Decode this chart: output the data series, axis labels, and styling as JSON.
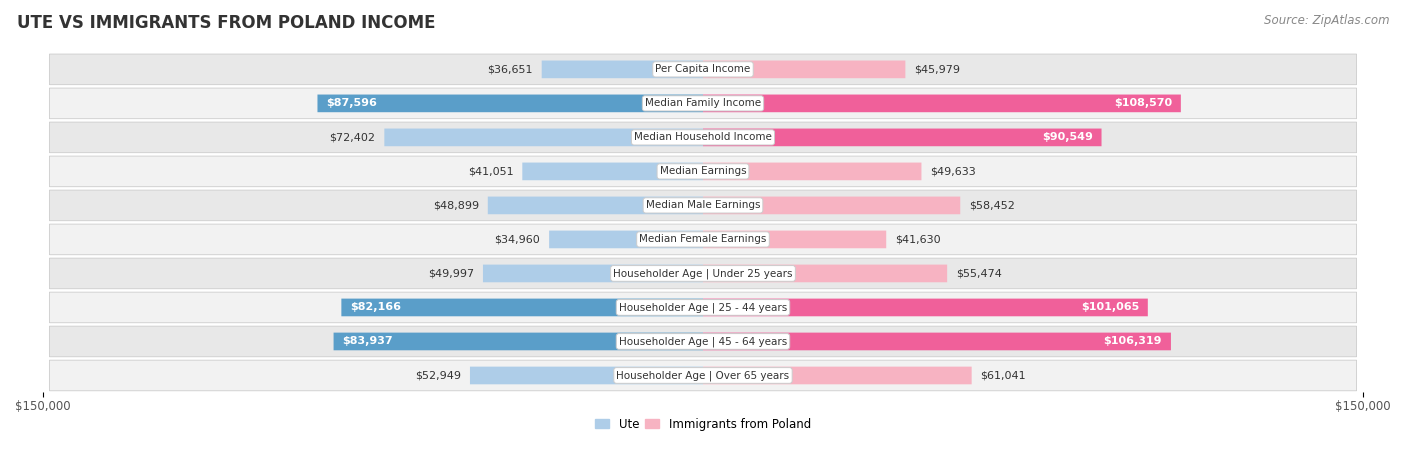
{
  "title": "Ute vs Immigrants from Poland Income",
  "source": "Source: ZipAtlas.com",
  "categories": [
    "Per Capita Income",
    "Median Family Income",
    "Median Household Income",
    "Median Earnings",
    "Median Male Earnings",
    "Median Female Earnings",
    "Householder Age | Under 25 years",
    "Householder Age | 25 - 44 years",
    "Householder Age | 45 - 64 years",
    "Householder Age | Over 65 years"
  ],
  "ute_values": [
    36651,
    87596,
    72402,
    41051,
    48899,
    34960,
    49997,
    82166,
    83937,
    52949
  ],
  "poland_values": [
    45979,
    108570,
    90549,
    49633,
    58452,
    41630,
    55474,
    101065,
    106319,
    61041
  ],
  "ute_color_light": "#aecde8",
  "ute_color_dark": "#5a9ec9",
  "poland_color_light": "#f7b3c2",
  "poland_color_dark": "#f0609a",
  "ute_label": "Ute",
  "poland_label": "Immigrants from Poland",
  "max_value": 150000,
  "title_fontsize": 12,
  "source_fontsize": 8.5,
  "bar_label_fontsize": 8,
  "category_fontsize": 7.5,
  "axis_label_fontsize": 8.5,
  "legend_fontsize": 8.5,
  "large_threshold": 75000,
  "row_bg_even": "#e8e8e8",
  "row_bg_odd": "#f2f2f2"
}
